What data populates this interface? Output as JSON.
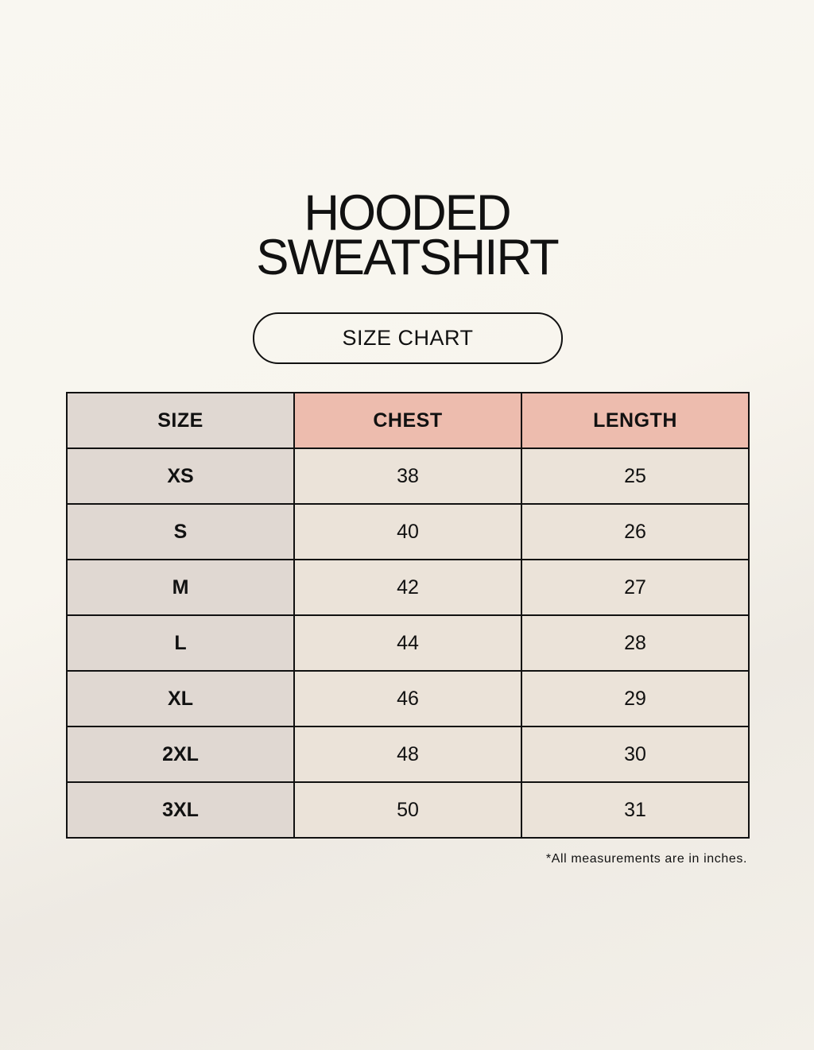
{
  "title": {
    "line1": "HOODED",
    "line2": "SWEATSHIRT"
  },
  "subtitle": "SIZE CHART",
  "table": {
    "headers": [
      "SIZE",
      "CHEST",
      "LENGTH"
    ],
    "rows": [
      {
        "size": "XS",
        "chest": "38",
        "length": "25"
      },
      {
        "size": "S",
        "chest": "40",
        "length": "26"
      },
      {
        "size": "M",
        "chest": "42",
        "length": "27"
      },
      {
        "size": "L",
        "chest": "44",
        "length": "28"
      },
      {
        "size": "XL",
        "chest": "46",
        "length": "29"
      },
      {
        "size": "2XL",
        "chest": "48",
        "length": "30"
      },
      {
        "size": "3XL",
        "chest": "50",
        "length": "31"
      }
    ]
  },
  "note": "*All measurements are in inches.",
  "colors": {
    "size_column": "#e0d8d2",
    "header_accent": "#edbcae",
    "value_cells": "#ebe3d9"
  }
}
